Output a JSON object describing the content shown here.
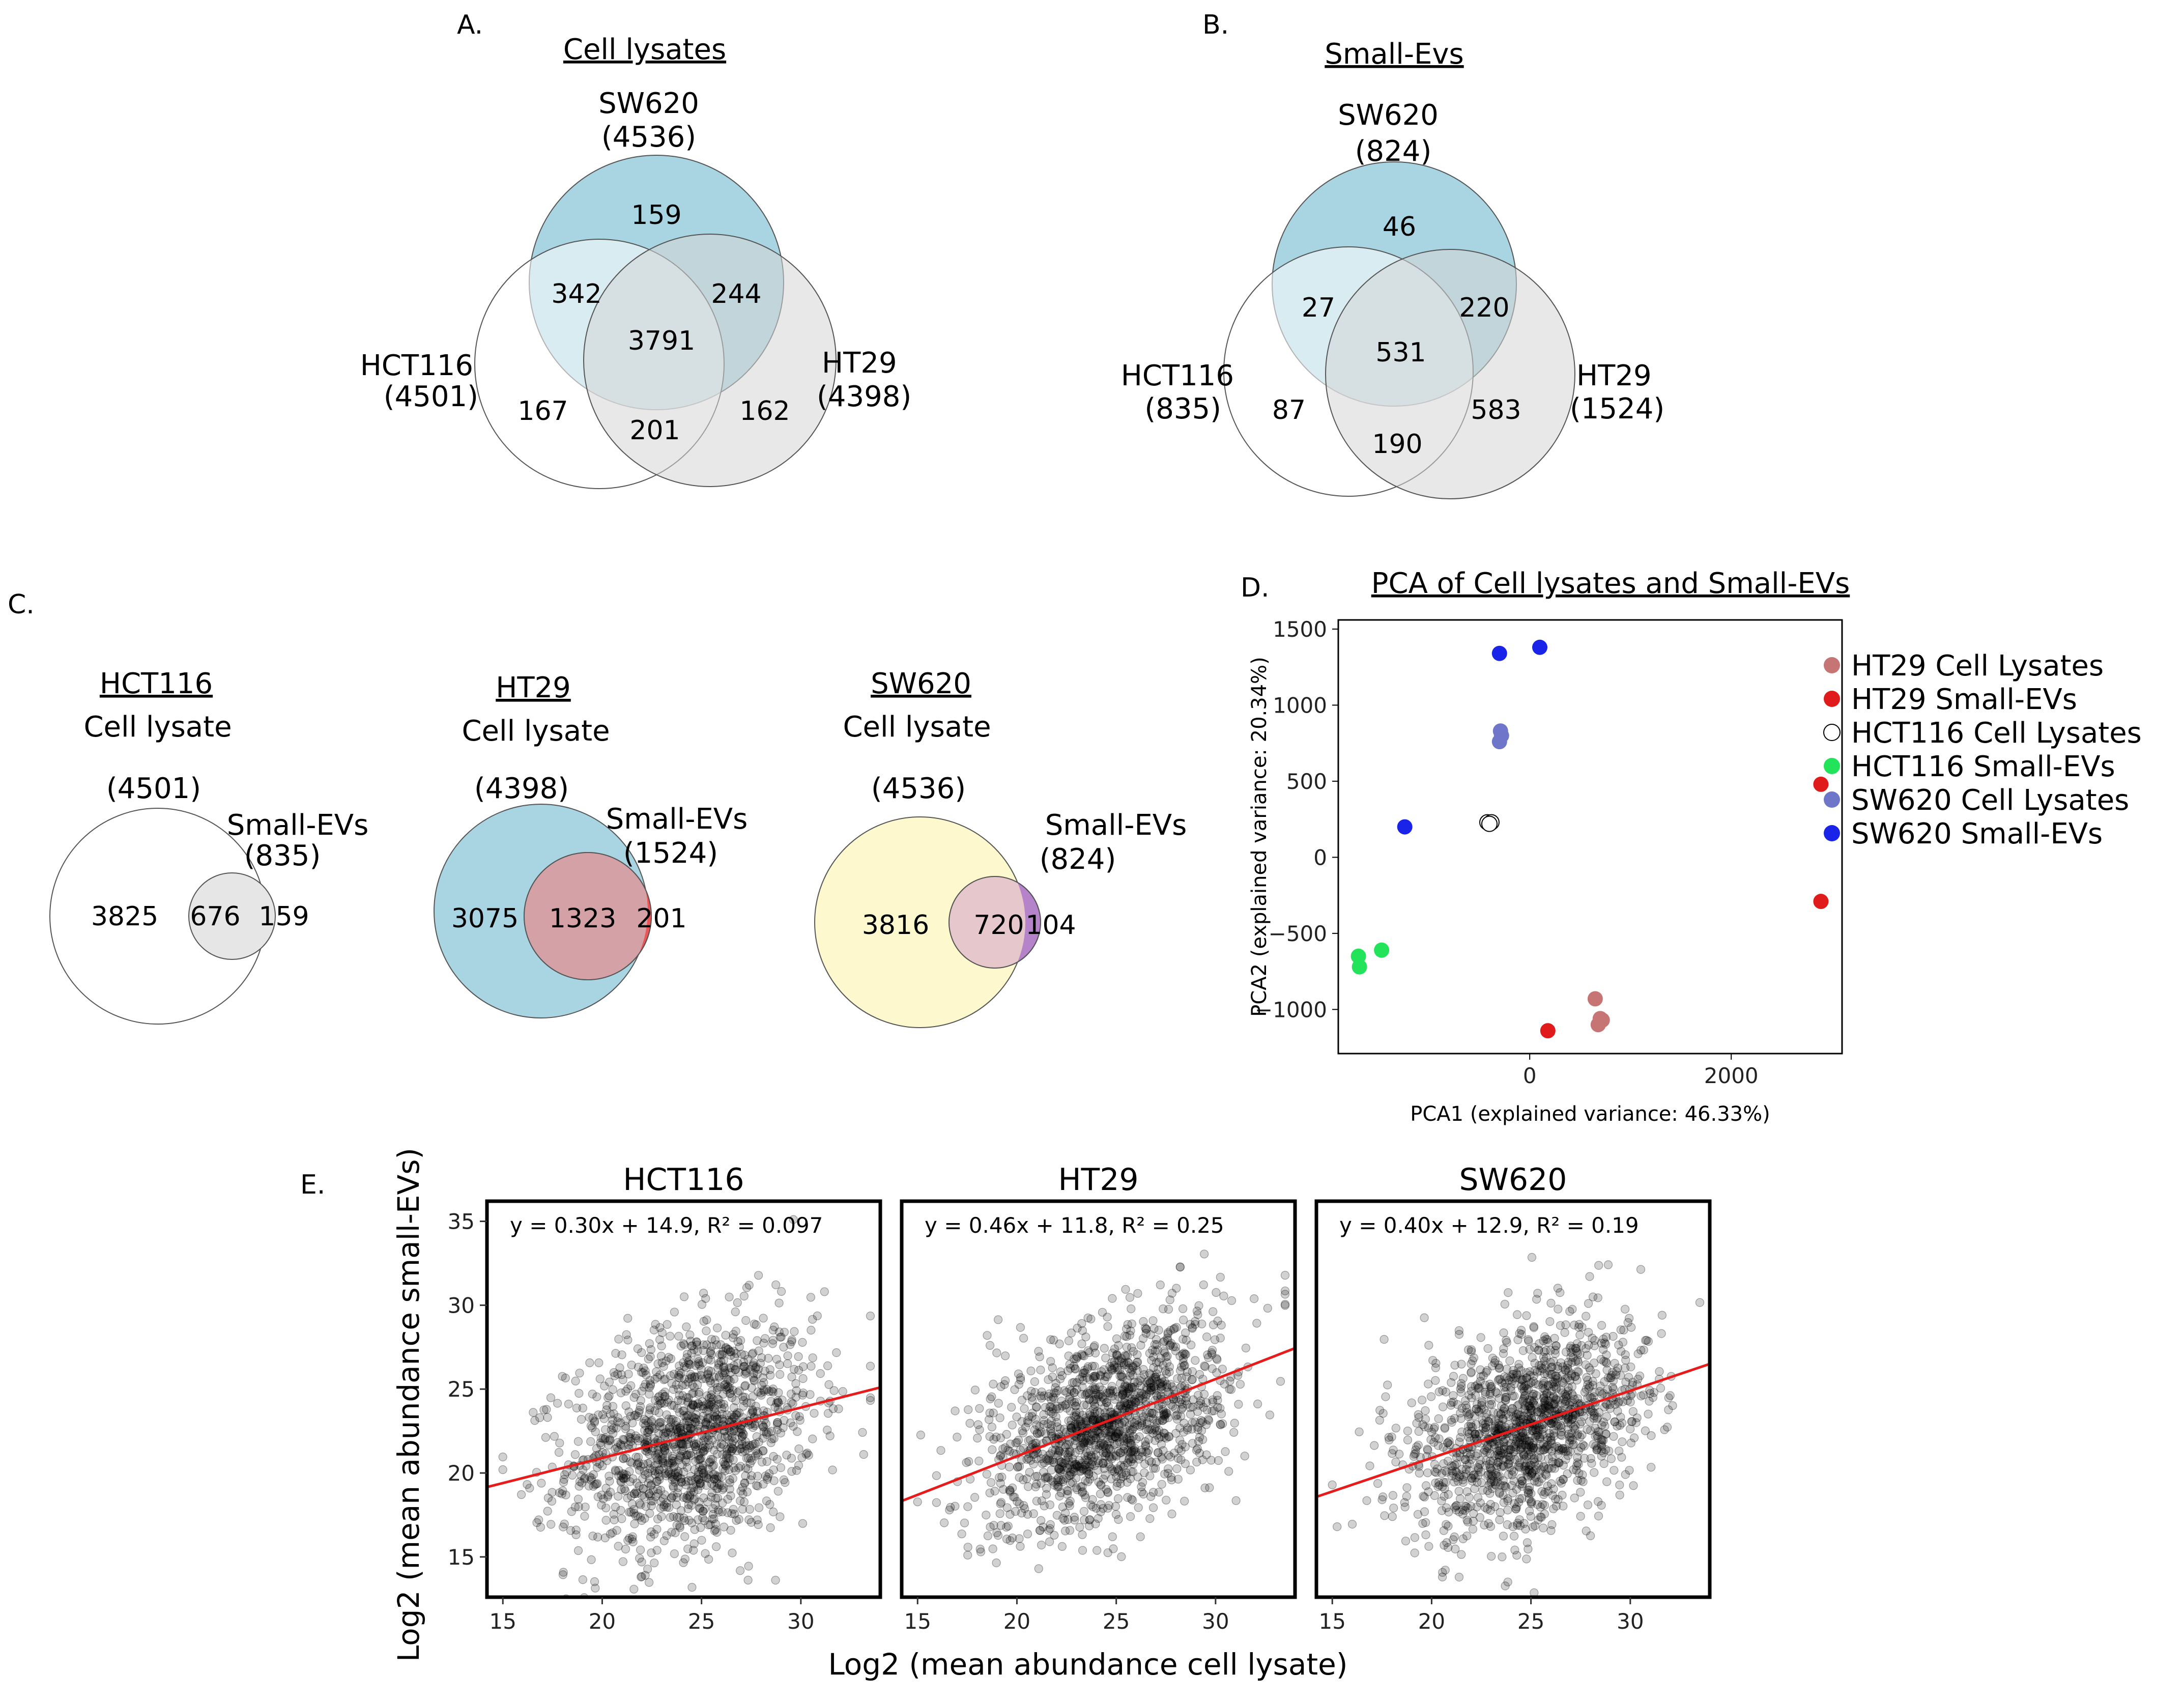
{
  "panels": {
    "a": {
      "letter": "A.",
      "title": "Cell lysates",
      "sets": [
        {
          "name": "SW620",
          "count": "(4536)",
          "color": "#a9d4e2"
        },
        {
          "name": "HCT116",
          "count": "(4501)",
          "color": "#ffffff"
        },
        {
          "name": "HT29",
          "count": "(4398)",
          "color": "#d6d6d6"
        }
      ],
      "regions": {
        "sw620_only": "159",
        "hct116_only": "167",
        "ht29_only": "162",
        "sw620_hct116": "342",
        "sw620_ht29": "244",
        "hct116_ht29": "201",
        "all": "3791"
      }
    },
    "b": {
      "letter": "B.",
      "title": "Small-Evs",
      "sets": [
        {
          "name": "SW620",
          "count": "(824)",
          "color": "#a9d4e2"
        },
        {
          "name": "HCT116",
          "count": "(835)",
          "color": "#ffffff"
        },
        {
          "name": "HT29",
          "count": "(1524)",
          "color": "#d6d6d6"
        }
      ],
      "regions": {
        "sw620_only": "46",
        "hct116_only": "87",
        "ht29_only": "583",
        "sw620_hct116": "27",
        "sw620_ht29": "220",
        "hct116_ht29": "190",
        "all": "531"
      }
    },
    "c": {
      "letter": "C.",
      "groups": [
        {
          "title": "HCT116",
          "subtitle": "Cell lysate",
          "lysate_count": "(4501)",
          "ev_label": "Small-EVs",
          "ev_count": "(835)",
          "lysate_only": "3825",
          "overlap": "676",
          "ev_only": "159",
          "big_color": "#ffffff",
          "small_color": "#e6e6e6",
          "overlap_color": "#e6e6e6"
        },
        {
          "title": "HT29",
          "subtitle": "Cell lysate",
          "lysate_count": "(4398)",
          "ev_label": "Small-EVs",
          "ev_count": "(1524)",
          "lysate_only": "3075",
          "overlap": "1323",
          "ev_only": "201",
          "big_color": "#a9d4e2",
          "small_color": "#ef5454",
          "overlap_color": "#d4a1a7"
        },
        {
          "title": "SW620",
          "subtitle": "Cell lysate",
          "lysate_count": "(4536)",
          "ev_label": "Small-EVs",
          "ev_count": "(824)",
          "lysate_only": "3816",
          "overlap": "720",
          "ev_only": "104",
          "big_color": "#fdf8ce",
          "small_color": "#b583c9",
          "overlap_color": "#e6c7cb"
        }
      ]
    },
    "d": {
      "letter": "D.",
      "title": "PCA of Cell lysates and Small-EVs"
    },
    "e": {
      "letter": "E.",
      "x_title": "Log2 (mean abundance cell lysate)",
      "y_title": "Log2 (mean abundance small-EVs)"
    }
  },
  "chart_data": [
    {
      "type": "scatter",
      "id": "pca",
      "title": "PCA of Cell lysates and Small-EVs",
      "xlabel": "PCA1 (explained variance: 46.33%)",
      "ylabel": "PCA2 (explained variance: 20.34%)",
      "xlim": [
        -1900,
        3100
      ],
      "ylim": [
        -1290,
        1560
      ],
      "xticks": [
        0,
        2000
      ],
      "xtick_labels": [
        "0",
        "2000"
      ],
      "yticks": [
        1500,
        1000,
        500,
        0,
        -500,
        -1000
      ],
      "ytick_labels": [
        "1500",
        "1000",
        "500",
        "0",
        "−500",
        "−1000"
      ],
      "legend_position": "right",
      "series": [
        {
          "name": "HT29 Cell Lysates",
          "color": "#c77475",
          "hollow": false,
          "points": [
            [
              650,
              -930
            ],
            [
              700,
              -1060
            ],
            [
              680,
              -1100
            ],
            [
              720,
              -1070
            ]
          ]
        },
        {
          "name": "HT29 Small-EVs",
          "color": "#e01b1b",
          "hollow": false,
          "points": [
            [
              2890,
              480
            ],
            [
              2890,
              -290
            ],
            [
              180,
              -1140
            ]
          ]
        },
        {
          "name": "HCT116 Cell Lysates",
          "color": "#ffffff",
          "hollow": true,
          "points": [
            [
              -420,
              230
            ],
            [
              -380,
              230
            ],
            [
              -400,
              220
            ]
          ]
        },
        {
          "name": "HCT116 Small-EVs",
          "color": "#22e35a",
          "hollow": false,
          "points": [
            [
              -1700,
              -650
            ],
            [
              -1690,
              -720
            ],
            [
              -1470,
              -610
            ]
          ]
        },
        {
          "name": "SW620 Cell Lysates",
          "color": "#6f76c9",
          "hollow": false,
          "points": [
            [
              -290,
              830
            ],
            [
              -280,
              800
            ],
            [
              -300,
              760
            ]
          ]
        },
        {
          "name": "SW620 Small-EVs",
          "color": "#1a24e8",
          "hollow": false,
          "points": [
            [
              -300,
              1340
            ],
            [
              100,
              1380
            ],
            [
              -1240,
              200
            ]
          ]
        }
      ]
    },
    {
      "type": "scatter",
      "id": "facets",
      "facets": [
        {
          "title": "HCT116",
          "equation": "y = 0.30x + 14.9, R² = 0.097",
          "slope": 0.3,
          "intercept": 14.9,
          "mean_x": 24.5,
          "sd_x": 3.1,
          "sd_y": 3.3
        },
        {
          "title": "HT29",
          "equation": "y = 0.46x + 11.8, R² = 0.25",
          "slope": 0.46,
          "intercept": 11.8,
          "mean_x": 24.5,
          "sd_x": 3.0,
          "sd_y": 2.8
        },
        {
          "title": "SW620",
          "equation": "y = 0.40x + 12.9, R² = 0.19",
          "slope": 0.4,
          "intercept": 12.9,
          "mean_x": 24.8,
          "sd_x": 3.0,
          "sd_y": 2.9
        }
      ],
      "n_points_per_facet": 1400,
      "xlim": [
        14.2,
        34
      ],
      "ylim": [
        12.6,
        36.2
      ],
      "xticks": [
        15,
        20,
        25,
        30
      ],
      "yticks": [
        15,
        20,
        25,
        30,
        35
      ],
      "xlabel": "Log2 (mean abundance cell lysate)",
      "ylabel": "Log2 (mean abundance small-EVs)",
      "point_color": "#000000",
      "point_opacity": 0.18,
      "line_color": "#e81b1b"
    }
  ]
}
